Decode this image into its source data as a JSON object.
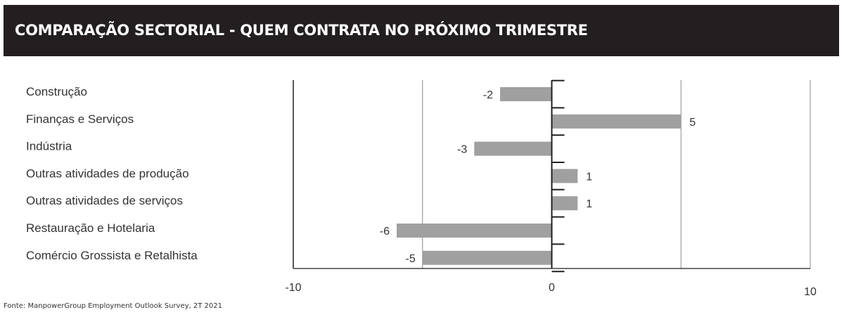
{
  "header": {
    "title": "COMPARAÇÃO SECTORIAL - QUEM CONTRATA NO PRÓXIMO TRIMESTRE",
    "background": "#231f20"
  },
  "source": "Fonte: ManpowerGroup Employment Outlook Survey, 2T 2021",
  "chart_data": {
    "type": "bar",
    "orientation": "horizontal",
    "title": "COMPARAÇÃO SECTORIAL - QUEM CONTRATA NO PRÓXIMO TRIMESTRE",
    "categories": [
      "Construção",
      "Finanças e Serviços",
      "Indústria",
      "Outras atividades de produção",
      "Outras atividades de serviços",
      "Restauração e Hotelaria",
      "Comércio Grossista e Retalhista"
    ],
    "values": [
      -2,
      5,
      -3,
      1,
      1,
      -6,
      -5
    ],
    "value_labels": [
      "-2",
      "5",
      "-3",
      "1",
      "1",
      "-6",
      "-5"
    ],
    "xlim": [
      -10,
      10
    ],
    "x_ticks": [
      -10,
      0,
      10
    ],
    "x_tick_labels": [
      "-10",
      "0",
      "10"
    ],
    "gridlines_at": [
      -10,
      -5,
      0,
      5,
      10
    ],
    "bar_color": "#a0a0a0",
    "axis_color": "#231f20",
    "grid": true,
    "legend": "none"
  }
}
